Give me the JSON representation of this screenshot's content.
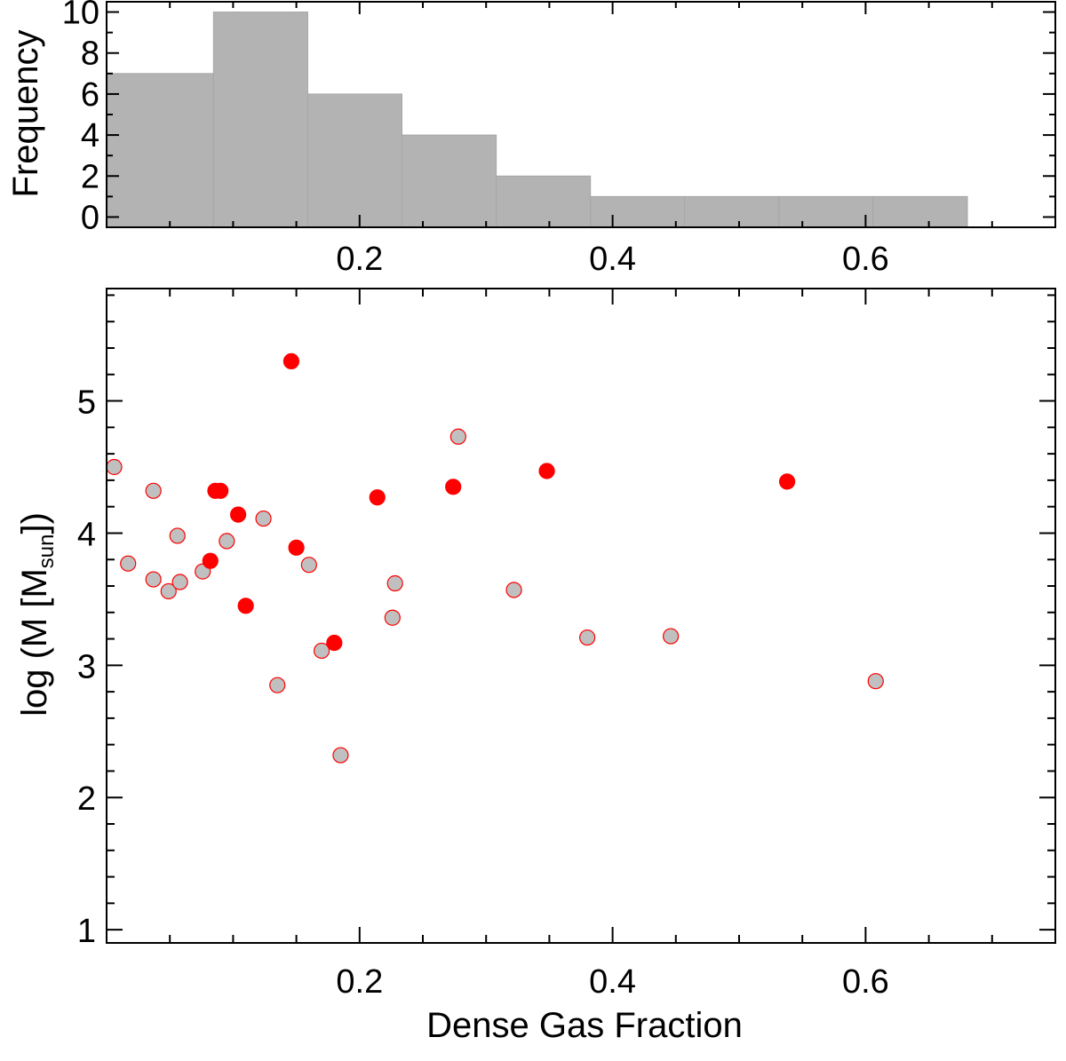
{
  "colors": {
    "bar_fill": "#b3b3b3",
    "bar_edge": "#a6a6a6",
    "red": "#ff0000",
    "gray_point": "#c0c0c0",
    "axis": "#000000"
  },
  "chart_data": [
    {
      "type": "bar",
      "name": "histogram",
      "ylabel": "Frequency",
      "xlabel": "",
      "xlim": [
        0.0,
        0.75
      ],
      "ylim": [
        -0.5,
        10.5
      ],
      "x_ticks": [
        0.2,
        0.4,
        0.6
      ],
      "x_tick_labels": [
        "0.2",
        "0.4",
        "0.6"
      ],
      "y_ticks": [
        0,
        2,
        4,
        6,
        8,
        10
      ],
      "y_tick_labels": [
        "0",
        "2",
        "4",
        "6",
        "8",
        "10"
      ],
      "bin_edges": [
        0.0,
        0.0845,
        0.159,
        0.2335,
        0.308,
        0.3825,
        0.457,
        0.5315,
        0.606,
        0.6805
      ],
      "values": [
        7,
        10,
        6,
        4,
        2,
        1,
        1,
        1,
        1
      ]
    },
    {
      "type": "scatter",
      "name": "mass-vs-dense-gas-fraction",
      "xlabel": "Dense Gas Fraction",
      "ylabel_main": "log (M [M",
      "ylabel_sub": "sun",
      "ylabel_end": "])",
      "xlim": [
        0.0,
        0.75
      ],
      "ylim": [
        0.9,
        5.85
      ],
      "x_ticks": [
        0.2,
        0.4,
        0.6
      ],
      "x_tick_labels": [
        "0.2",
        "0.4",
        "0.6"
      ],
      "y_ticks": [
        1,
        2,
        3,
        4,
        5
      ],
      "y_tick_labels": [
        "1",
        "2",
        "3",
        "4",
        "5"
      ],
      "series": [
        {
          "name": "red",
          "points": [
            [
              0.146,
              5.3
            ],
            [
              0.086,
              4.32
            ],
            [
              0.09,
              4.32
            ],
            [
              0.104,
              4.14
            ],
            [
              0.082,
              3.79
            ],
            [
              0.15,
              3.89
            ],
            [
              0.11,
              3.45
            ],
            [
              0.18,
              3.17
            ],
            [
              0.214,
              4.27
            ],
            [
              0.274,
              4.35
            ],
            [
              0.348,
              4.47
            ],
            [
              0.538,
              4.39
            ]
          ]
        },
        {
          "name": "gray",
          "points": [
            [
              0.006,
              4.5
            ],
            [
              0.017,
              3.77
            ],
            [
              0.037,
              4.32
            ],
            [
              0.037,
              3.65
            ],
            [
              0.049,
              3.56
            ],
            [
              0.056,
              3.98
            ],
            [
              0.058,
              3.63
            ],
            [
              0.076,
              3.71
            ],
            [
              0.095,
              3.94
            ],
            [
              0.124,
              4.11
            ],
            [
              0.135,
              2.85
            ],
            [
              0.16,
              3.76
            ],
            [
              0.17,
              3.11
            ],
            [
              0.185,
              2.32
            ],
            [
              0.226,
              3.36
            ],
            [
              0.228,
              3.62
            ],
            [
              0.278,
              4.73
            ],
            [
              0.322,
              3.57
            ],
            [
              0.38,
              3.21
            ],
            [
              0.446,
              3.22
            ],
            [
              0.608,
              2.88
            ]
          ]
        }
      ]
    }
  ]
}
